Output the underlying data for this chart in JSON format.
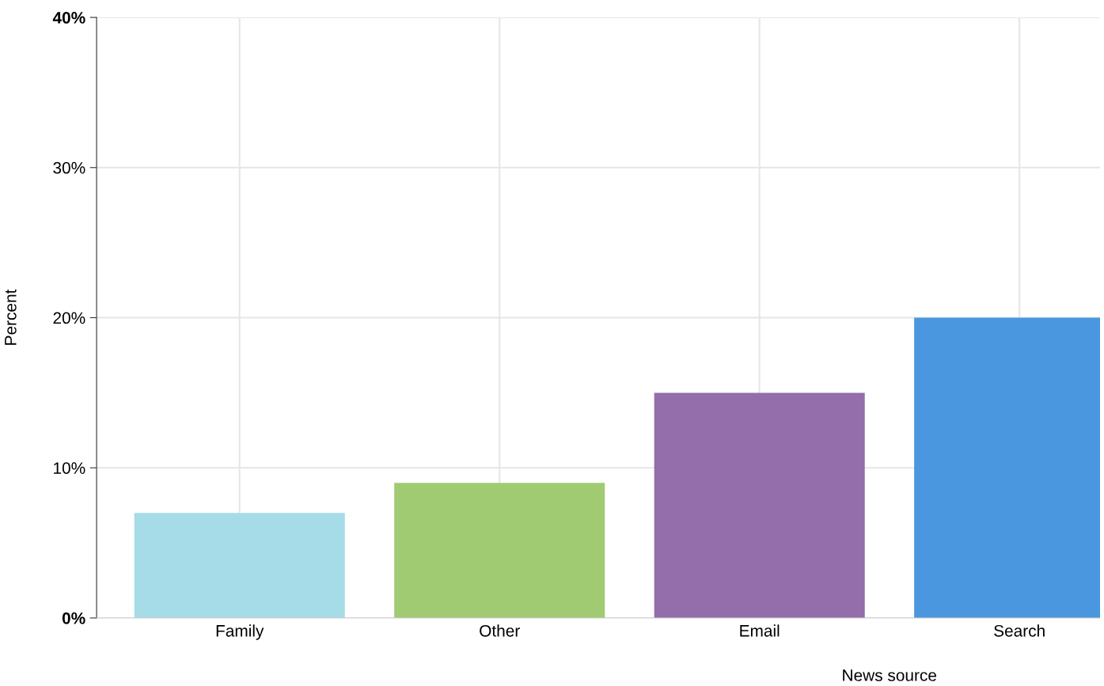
{
  "chart_data": {
    "type": "bar",
    "xlabel": "News source",
    "ylabel": "Percent",
    "categories": [
      "Family",
      "Other",
      "Email",
      "Search"
    ],
    "values": [
      7,
      9,
      15,
      20
    ],
    "colors": [
      "#a6dce8",
      "#a0cb72",
      "#946dab",
      "#4a96df"
    ],
    "ylim": [
      0,
      40
    ],
    "yticks": [
      {
        "value": 0,
        "label": "0%"
      },
      {
        "value": 10,
        "label": "10%"
      },
      {
        "value": 20,
        "label": "20%"
      },
      {
        "value": 30,
        "label": "30%"
      },
      {
        "value": 40,
        "label": "40%"
      }
    ],
    "grid": true
  }
}
